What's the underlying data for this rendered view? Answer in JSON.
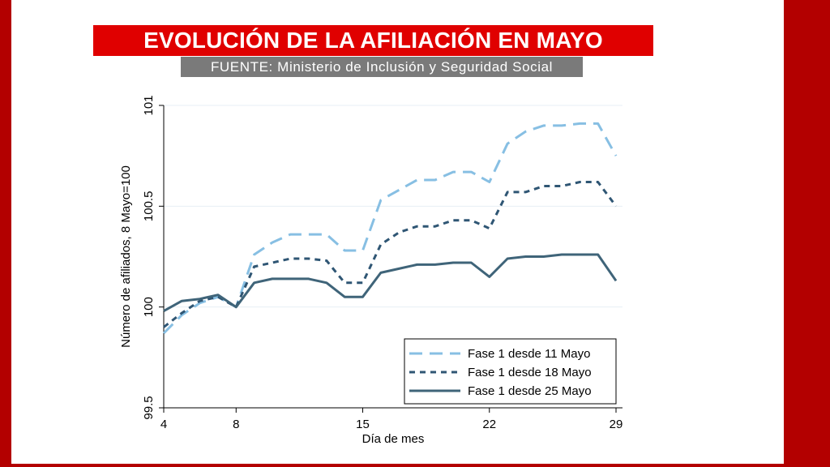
{
  "colors": {
    "frame_red": "#b30000",
    "title_red": "#e00000",
    "source_gray": "#7a7a7a",
    "series_1": "#87bfe3",
    "series_2": "#2f5674",
    "series_3": "#3f6479",
    "axis": "#000000",
    "grid": "#e7eff4"
  },
  "header": {
    "title": "EVOLUCIÓN DE LA AFILIACIÓN EN MAYO",
    "source": "FUENTE: Ministerio de Inclusión y Seguridad Social"
  },
  "chart_data": {
    "type": "line",
    "title": "",
    "xlabel": "Día de mes",
    "ylabel": "Número de afiliados, 8 Mayo=100",
    "xlim": [
      4,
      29
    ],
    "ylim": [
      99.5,
      101
    ],
    "xticks": [
      4,
      8,
      15,
      22,
      29
    ],
    "yticks": [
      99.5,
      100,
      100.5,
      101
    ],
    "ytick_labels": [
      "99.5",
      "100",
      "100.5",
      "101"
    ],
    "grid": "horizontal",
    "legend_position": "bottom-right",
    "x": [
      4,
      5,
      6,
      7,
      8,
      9,
      10,
      11,
      12,
      13,
      14,
      15,
      16,
      17,
      18,
      19,
      20,
      21,
      22,
      23,
      24,
      25,
      26,
      27,
      28,
      29
    ],
    "series": [
      {
        "name": "Fase 1 desde 11 Mayo",
        "style": "long-dash",
        "values": [
          99.87,
          99.96,
          100.02,
          100.05,
          100.0,
          100.26,
          100.32,
          100.36,
          100.36,
          100.36,
          100.28,
          100.28,
          100.53,
          100.58,
          100.63,
          100.63,
          100.67,
          100.67,
          100.62,
          100.81,
          100.87,
          100.9,
          100.9,
          100.91,
          100.91,
          100.75
        ]
      },
      {
        "name": "Fase 1 desde 18 Mayo",
        "style": "short-dash",
        "values": [
          99.9,
          99.97,
          100.03,
          100.05,
          100.0,
          100.2,
          100.22,
          100.24,
          100.24,
          100.23,
          100.12,
          100.12,
          100.31,
          100.37,
          100.4,
          100.4,
          100.43,
          100.43,
          100.39,
          100.57,
          100.57,
          100.6,
          100.6,
          100.62,
          100.62,
          100.5
        ]
      },
      {
        "name": "Fase 1 desde 25 Mayo",
        "style": "solid",
        "values": [
          99.98,
          100.03,
          100.04,
          100.06,
          100.0,
          100.12,
          100.14,
          100.14,
          100.14,
          100.12,
          100.05,
          100.05,
          100.17,
          100.19,
          100.21,
          100.21,
          100.22,
          100.22,
          100.15,
          100.24,
          100.25,
          100.25,
          100.26,
          100.26,
          100.26,
          100.13
        ]
      }
    ]
  }
}
